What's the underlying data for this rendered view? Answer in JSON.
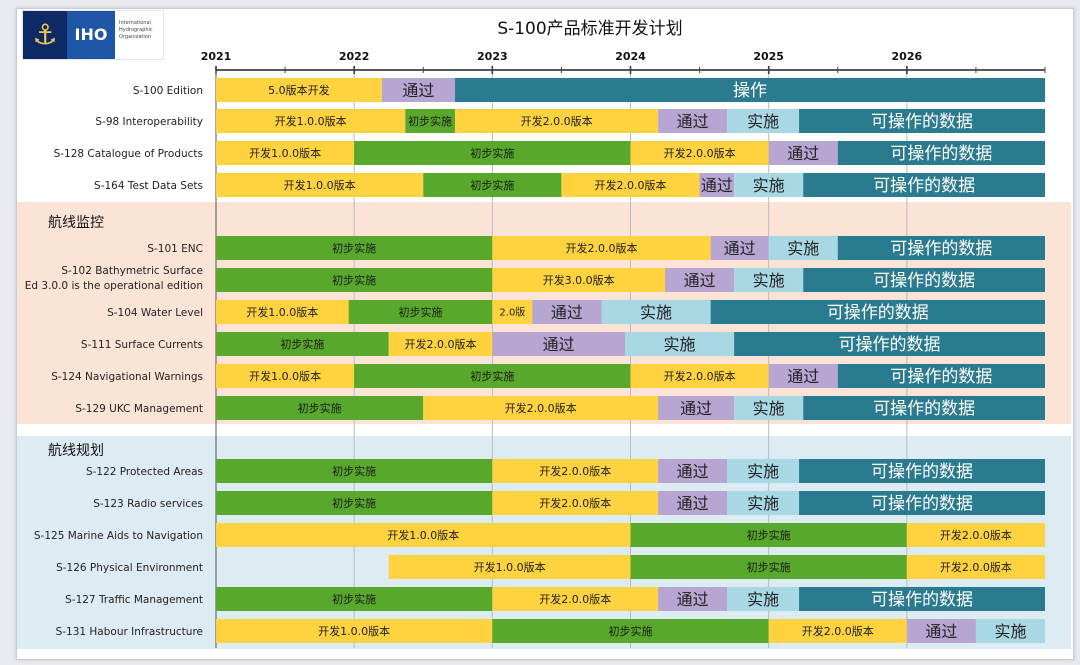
{
  "window_title": "S-100产品标准开发计划",
  "logo": {
    "abbr": "IHO",
    "org_lines": [
      "International",
      "Hydrographic",
      "Organization"
    ]
  },
  "colors": {
    "dev": "#ffd23f",
    "impl": "#58a82b",
    "pass": "#b7a6d2",
    "implement": "#a9d8e5",
    "operate": "#2a7b8f",
    "section_nav": "#fbe4d6",
    "section_plan": "#dcecf2"
  },
  "chart_data": {
    "type": "gantt",
    "title": "S-100产品标准开发计划",
    "x_ticks": [
      "2021",
      "2022",
      "2023",
      "2024",
      "2025",
      "2026"
    ],
    "x_range": [
      2021.0,
      2027.0
    ],
    "sections": [
      {
        "label": "",
        "rows": [
          0,
          1,
          2,
          3
        ]
      },
      {
        "label": "航线监控",
        "rows": [
          4,
          5,
          6,
          7,
          8,
          9
        ]
      },
      {
        "label": "航线规划",
        "rows": [
          10,
          11,
          12,
          13,
          14,
          15
        ]
      }
    ],
    "rows": [
      {
        "label": "S-100 Edition",
        "segments": [
          {
            "label": "5.0版本开发",
            "phase": "dev",
            "start": 2021.0,
            "end": 2022.2
          },
          {
            "label": "通过",
            "phase": "pass",
            "start": 2022.2,
            "end": 2022.73
          },
          {
            "label": "操作",
            "phase": "operate",
            "start": 2022.73,
            "end": 2027.0
          }
        ]
      },
      {
        "label": "S-98 Interoperability",
        "segments": [
          {
            "label": "开发1.0.0版本",
            "phase": "dev",
            "start": 2021.0,
            "end": 2022.37
          },
          {
            "label": "初步实施",
            "phase": "impl",
            "start": 2022.37,
            "end": 2022.73
          },
          {
            "label": "开发2.0.0版本",
            "phase": "dev",
            "start": 2022.73,
            "end": 2024.2
          },
          {
            "label": "通过",
            "phase": "pass",
            "start": 2024.2,
            "end": 2024.7
          },
          {
            "label": "实施",
            "phase": "implement",
            "start": 2024.7,
            "end": 2025.22
          },
          {
            "label": "可操作的数据",
            "phase": "operate",
            "start": 2025.22,
            "end": 2027.0
          }
        ]
      },
      {
        "label": "S-128 Catalogue of Products",
        "segments": [
          {
            "label": "开发1.0.0版本",
            "phase": "dev",
            "start": 2021.0,
            "end": 2022.0
          },
          {
            "label": "初步实施",
            "phase": "impl",
            "start": 2022.0,
            "end": 2024.0
          },
          {
            "label": "开发2.0.0版本",
            "phase": "dev",
            "start": 2024.0,
            "end": 2025.0
          },
          {
            "label": "通过",
            "phase": "pass",
            "start": 2025.0,
            "end": 2025.5
          },
          {
            "label": "可操作的数据",
            "phase": "operate",
            "start": 2025.5,
            "end": 2027.0
          }
        ]
      },
      {
        "label": "S-164 Test Data Sets",
        "segments": [
          {
            "label": "开发1.0.0版本",
            "phase": "dev",
            "start": 2021.0,
            "end": 2022.5
          },
          {
            "label": "初步实施",
            "phase": "impl",
            "start": 2022.5,
            "end": 2023.5
          },
          {
            "label": "开发2.0.0版本",
            "phase": "dev",
            "start": 2023.5,
            "end": 2024.5
          },
          {
            "label": "通过",
            "phase": "pass",
            "start": 2024.5,
            "end": 2024.75
          },
          {
            "label": "实施",
            "phase": "implement",
            "start": 2024.75,
            "end": 2025.25
          },
          {
            "label": "可操作的数据",
            "phase": "operate",
            "start": 2025.25,
            "end": 2027.0
          }
        ]
      },
      {
        "label": "S-101 ENC",
        "segments": [
          {
            "label": "初步实施",
            "phase": "impl",
            "start": 2021.0,
            "end": 2023.0
          },
          {
            "label": "开发2.0.0版本",
            "phase": "dev",
            "start": 2023.0,
            "end": 2024.58
          },
          {
            "label": "通过",
            "phase": "pass",
            "start": 2024.58,
            "end": 2025.0
          },
          {
            "label": "实施",
            "phase": "implement",
            "start": 2025.0,
            "end": 2025.5
          },
          {
            "label": "可操作的数据",
            "phase": "operate",
            "start": 2025.5,
            "end": 2027.0
          }
        ]
      },
      {
        "label": [
          "S-102 Bathymetric Surface",
          "Ed 3.0.0 is the operational edition"
        ],
        "segments": [
          {
            "label": "初步实施",
            "phase": "impl",
            "start": 2021.0,
            "end": 2023.0
          },
          {
            "label": "开发3.0.0版本",
            "phase": "dev",
            "start": 2023.0,
            "end": 2024.25
          },
          {
            "label": "通过",
            "phase": "pass",
            "start": 2024.25,
            "end": 2024.75
          },
          {
            "label": "实施",
            "phase": "implement",
            "start": 2024.75,
            "end": 2025.25
          },
          {
            "label": "可操作的数据",
            "phase": "operate",
            "start": 2025.25,
            "end": 2027.0
          }
        ]
      },
      {
        "label": "S-104 Water Level",
        "segments": [
          {
            "label": "开发1.0.0版本",
            "phase": "dev",
            "start": 2021.0,
            "end": 2021.96
          },
          {
            "label": "初步实施",
            "phase": "impl",
            "start": 2021.96,
            "end": 2023.0
          },
          {
            "label": "2.0版",
            "phase": "dev",
            "start": 2023.0,
            "end": 2023.29
          },
          {
            "label": "通过",
            "phase": "pass",
            "start": 2023.29,
            "end": 2023.79
          },
          {
            "label": "实施",
            "phase": "implement",
            "start": 2023.79,
            "end": 2024.58
          },
          {
            "label": "可操作的数据",
            "phase": "operate",
            "start": 2024.58,
            "end": 2027.0
          }
        ]
      },
      {
        "label": "S-111 Surface Currents",
        "segments": [
          {
            "label": "初步实施",
            "phase": "impl",
            "start": 2021.0,
            "end": 2022.25
          },
          {
            "label": "开发2.0.0版本",
            "phase": "dev",
            "start": 2022.25,
            "end": 2023.0
          },
          {
            "label": "通过",
            "phase": "pass",
            "start": 2023.0,
            "end": 2023.96
          },
          {
            "label": "实施",
            "phase": "implement",
            "start": 2023.96,
            "end": 2024.75
          },
          {
            "label": "可操作的数据",
            "phase": "operate",
            "start": 2024.75,
            "end": 2027.0
          }
        ]
      },
      {
        "label": "S-124 Navigational Warnings",
        "segments": [
          {
            "label": "开发1.0.0版本",
            "phase": "dev",
            "start": 2021.0,
            "end": 2022.0
          },
          {
            "label": "初步实施",
            "phase": "impl",
            "start": 2022.0,
            "end": 2024.0
          },
          {
            "label": "开发2.0.0版本",
            "phase": "dev",
            "start": 2024.0,
            "end": 2025.0
          },
          {
            "label": "通过",
            "phase": "pass",
            "start": 2025.0,
            "end": 2025.5
          },
          {
            "label": "可操作的数据",
            "phase": "operate",
            "start": 2025.5,
            "end": 2027.0
          }
        ]
      },
      {
        "label": "S-129 UKC Management",
        "segments": [
          {
            "label": "初步实施",
            "phase": "impl",
            "start": 2021.0,
            "end": 2022.5
          },
          {
            "label": "开发2.0.0版本",
            "phase": "dev",
            "start": 2022.5,
            "end": 2024.2
          },
          {
            "label": "通过",
            "phase": "pass",
            "start": 2024.2,
            "end": 2024.75
          },
          {
            "label": "实施",
            "phase": "implement",
            "start": 2024.75,
            "end": 2025.25
          },
          {
            "label": "可操作的数据",
            "phase": "operate",
            "start": 2025.25,
            "end": 2027.0
          }
        ]
      },
      {
        "label": "S-122 Protected Areas",
        "segments": [
          {
            "label": "初步实施",
            "phase": "impl",
            "start": 2021.0,
            "end": 2023.0
          },
          {
            "label": "开发2.0.0版本",
            "phase": "dev",
            "start": 2023.0,
            "end": 2024.2
          },
          {
            "label": "通过",
            "phase": "pass",
            "start": 2024.2,
            "end": 2024.7
          },
          {
            "label": "实施",
            "phase": "implement",
            "start": 2024.7,
            "end": 2025.22
          },
          {
            "label": "可操作的数据",
            "phase": "operate",
            "start": 2025.22,
            "end": 2027.0
          }
        ]
      },
      {
        "label": "S-123 Radio services",
        "segments": [
          {
            "label": "初步实施",
            "phase": "impl",
            "start": 2021.0,
            "end": 2023.0
          },
          {
            "label": "开发2.0.0版本",
            "phase": "dev",
            "start": 2023.0,
            "end": 2024.2
          },
          {
            "label": "通过",
            "phase": "pass",
            "start": 2024.2,
            "end": 2024.7
          },
          {
            "label": "实施",
            "phase": "implement",
            "start": 2024.7,
            "end": 2025.22
          },
          {
            "label": "可操作的数据",
            "phase": "operate",
            "start": 2025.22,
            "end": 2027.0
          }
        ]
      },
      {
        "label": "S-125  Marine Aids to Navigation",
        "segments": [
          {
            "label": "开发1.0.0版本",
            "phase": "dev",
            "start": 2021.0,
            "end": 2024.0
          },
          {
            "label": "初步实施",
            "phase": "impl",
            "start": 2024.0,
            "end": 2026.0
          },
          {
            "label": "开发2.0.0版本",
            "phase": "dev",
            "start": 2026.0,
            "end": 2027.0
          }
        ]
      },
      {
        "label": "S-126 Physical Environment",
        "segments": [
          {
            "label": "开发1.0.0版本",
            "phase": "dev",
            "start": 2022.25,
            "end": 2024.0
          },
          {
            "label": "初步实施",
            "phase": "impl",
            "start": 2024.0,
            "end": 2026.0
          },
          {
            "label": "开发2.0.0版本",
            "phase": "dev",
            "start": 2026.0,
            "end": 2027.0
          }
        ]
      },
      {
        "label": "S-127 Traffic Management",
        "segments": [
          {
            "label": "初步实施",
            "phase": "impl",
            "start": 2021.0,
            "end": 2023.0
          },
          {
            "label": "开发2.0.0版本",
            "phase": "dev",
            "start": 2023.0,
            "end": 2024.2
          },
          {
            "label": "通过",
            "phase": "pass",
            "start": 2024.2,
            "end": 2024.7
          },
          {
            "label": "实施",
            "phase": "implement",
            "start": 2024.7,
            "end": 2025.22
          },
          {
            "label": "可操作的数据",
            "phase": "operate",
            "start": 2025.22,
            "end": 2027.0
          }
        ]
      },
      {
        "label": "S-131 Habour Infrastructure",
        "segments": [
          {
            "label": "开发1.0.0版本",
            "phase": "dev",
            "start": 2021.0,
            "end": 2023.0
          },
          {
            "label": "初步实施",
            "phase": "impl",
            "start": 2023.0,
            "end": 2025.0
          },
          {
            "label": "开发2.0.0版本",
            "phase": "dev",
            "start": 2025.0,
            "end": 2026.0
          },
          {
            "label": "通过",
            "phase": "pass",
            "start": 2026.0,
            "end": 2026.5
          },
          {
            "label": "实施",
            "phase": "implement",
            "start": 2026.5,
            "end": 2027.0
          }
        ]
      }
    ]
  }
}
